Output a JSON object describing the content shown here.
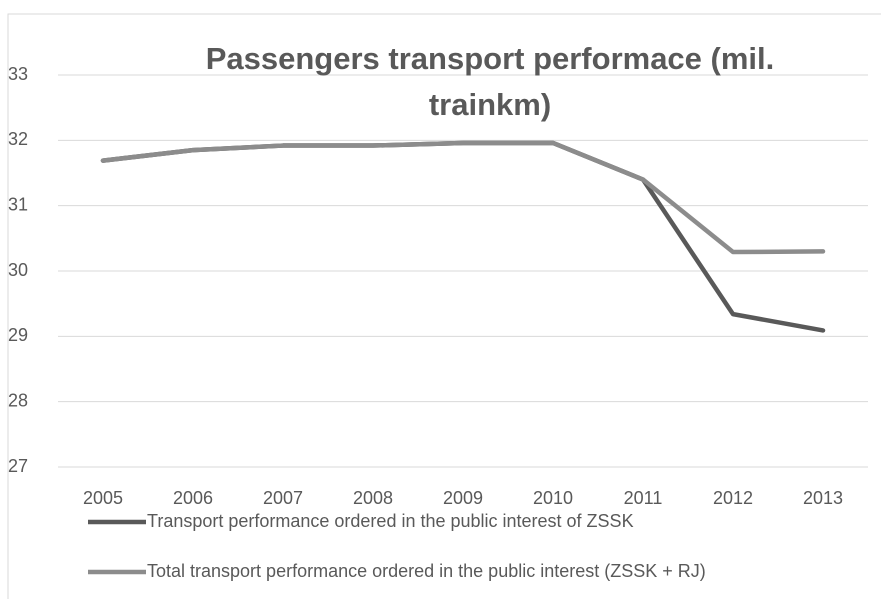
{
  "chart_data": {
    "type": "line",
    "title": "Passengers transport performace (mil. trainkm)",
    "categories": [
      "2005",
      "2006",
      "2007",
      "2008",
      "2009",
      "2010",
      "2011",
      "2012",
      "2013"
    ],
    "series": [
      {
        "name": "Transport performance ordered in the public interest of ZSSK",
        "color": "#595959",
        "values": [
          31.69,
          31.85,
          31.92,
          31.92,
          31.96,
          31.96,
          31.4,
          29.34,
          29.09
        ]
      },
      {
        "name": "Total transport performance ordered in the public interest (ZSSK + RJ)",
        "color": "#8c8c8c",
        "values": [
          31.69,
          31.85,
          31.92,
          31.92,
          31.96,
          31.96,
          31.4,
          30.29,
          30.3
        ]
      }
    ],
    "ylim": [
      27,
      33
    ],
    "yticks": [
      27,
      28,
      29,
      30,
      31,
      32,
      33
    ],
    "grid": true,
    "legend": "bottom"
  }
}
